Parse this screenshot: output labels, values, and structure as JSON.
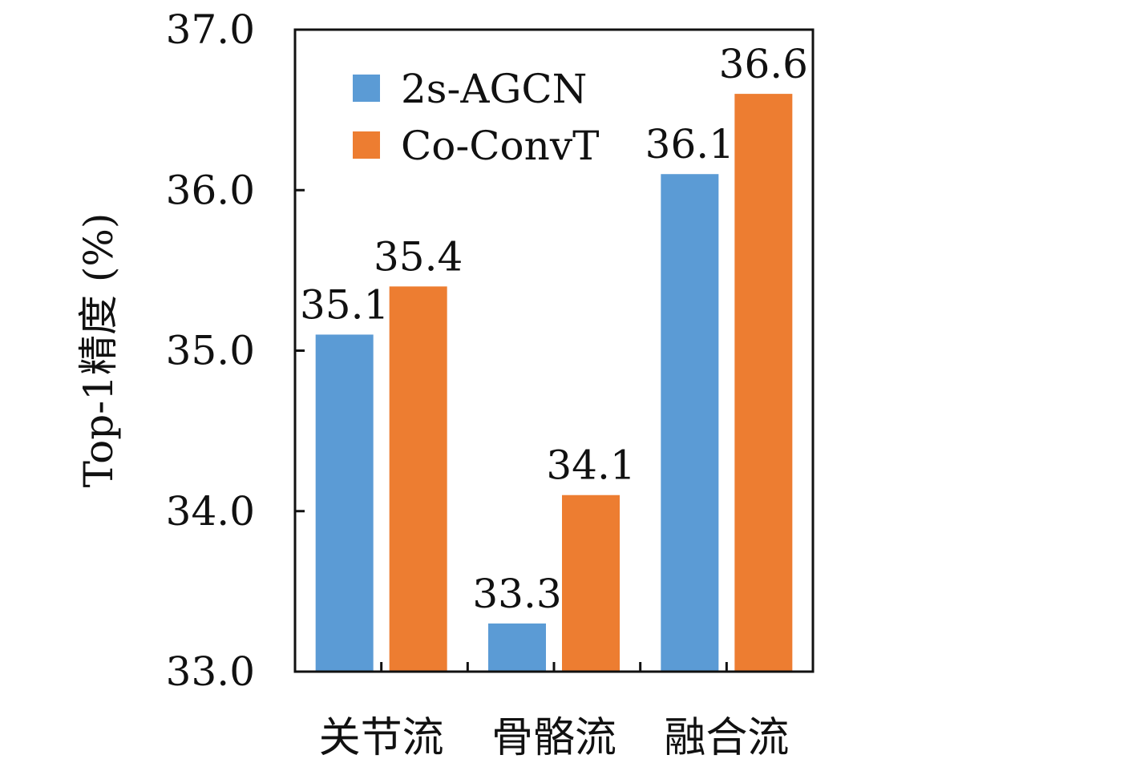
{
  "chart_data": {
    "type": "bar",
    "categories": [
      "关节流",
      "骨骼流",
      "融合流"
    ],
    "series": [
      {
        "name": "2s-AGCN",
        "values": [
          35.1,
          33.3,
          36.1
        ],
        "color": "#5b9bd5"
      },
      {
        "name": "Co-ConvT",
        "values": [
          35.4,
          34.1,
          36.6
        ],
        "color": "#ed7d31"
      }
    ],
    "data_labels": [
      [
        "35.1",
        "33.3",
        "36.1"
      ],
      [
        "35.4",
        "34.1",
        "36.6"
      ]
    ],
    "title": "",
    "xlabel": "",
    "ylabel": "Top-1精度 (%)",
    "ylim": [
      33.0,
      37.0
    ],
    "yticks": [
      "33.0",
      "34.0",
      "35.0",
      "36.0",
      "37.0"
    ],
    "grid": false,
    "legend_position": "top-left"
  }
}
